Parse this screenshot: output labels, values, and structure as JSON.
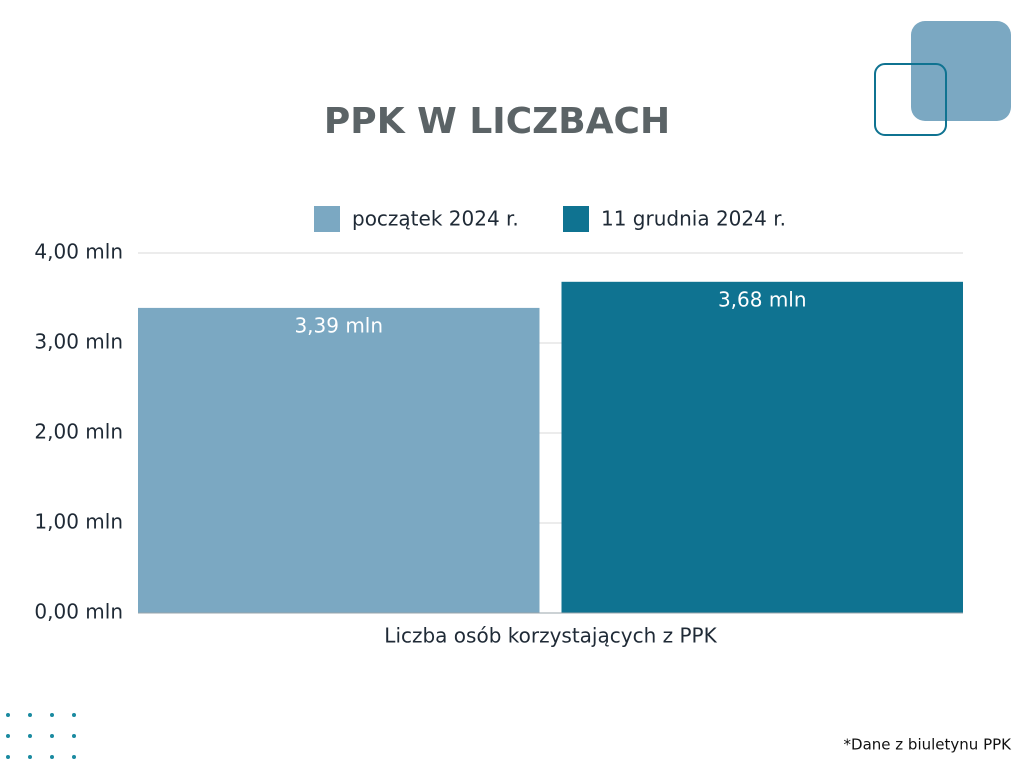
{
  "chart_data": {
    "type": "bar",
    "title": "PPK W LICZBACH",
    "categories": [
      "Liczba osób korzystających z PPK"
    ],
    "series": [
      {
        "name": "początek 2024 r.",
        "color": "#7ba8c2",
        "values": [
          3.39
        ],
        "value_labels": [
          "3,39 mln"
        ]
      },
      {
        "name": "11 grudnia 2024 r.",
        "color": "#0f7391",
        "values": [
          3.68
        ],
        "value_labels": [
          "3,68 mln"
        ]
      }
    ],
    "ylim": [
      0,
      4
    ],
    "yticks": [
      {
        "value": 0,
        "label": "0,00 mln"
      },
      {
        "value": 1,
        "label": "1,00 mln"
      },
      {
        "value": 2,
        "label": "2,00 mln"
      },
      {
        "value": 3,
        "label": "3,00 mln"
      },
      {
        "value": 4,
        "label": "4,00 mln"
      }
    ],
    "grid": true,
    "legend": "top",
    "note": "*Dane z biuletynu PPK"
  }
}
